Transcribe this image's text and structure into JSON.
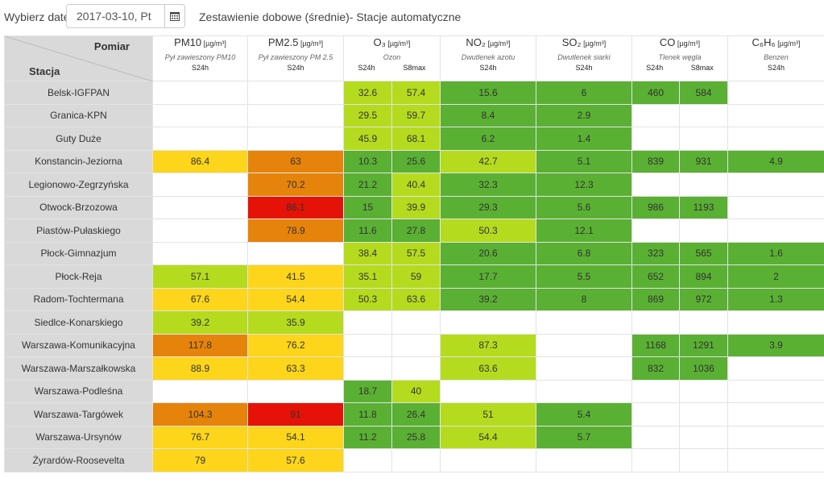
{
  "date_picker": {
    "label": "Wybierz datę:",
    "value": "2017-03-10, Pt",
    "icon": "calendar-icon"
  },
  "title": "Zestawienie dobowe (średnie)- Stacje automatyczne",
  "header": {
    "pomiar": "Pomiar",
    "stacja": "Stacja"
  },
  "pollutants": [
    {
      "name": "PM10",
      "unit": "[µg/m³]",
      "desc": "Pył zawieszony PM10",
      "subs": [
        "S24h"
      ]
    },
    {
      "name": "PM2.5",
      "unit": "[µg/m³]",
      "desc": "Pył zawieszony PM 2.5",
      "subs": [
        "S24h"
      ]
    },
    {
      "name": "O₃",
      "unit": "[µg/m³]",
      "desc": "Ozon",
      "subs": [
        "S24h",
        "S8max"
      ]
    },
    {
      "name": "NO₂",
      "unit": "[µg/m³]",
      "desc": "Dwutlenek azotu",
      "subs": [
        "S24h"
      ]
    },
    {
      "name": "SO₂",
      "unit": "[µg/m³]",
      "desc": "Dwutlenek siarki",
      "subs": [
        "S24h"
      ]
    },
    {
      "name": "CO",
      "unit": "[µg/m³]",
      "desc": "Tlenek węgla",
      "subs": [
        "S24h",
        "S8max"
      ]
    },
    {
      "name": "C₆H₆",
      "unit": "[µg/m³]",
      "desc": "Benzen",
      "subs": [
        "S24h"
      ]
    }
  ],
  "colors": {
    "g": "#5ab033",
    "lg": "#b5db1f",
    "y": "#fdd51a",
    "o": "#e6830a",
    "r": "#e41207"
  },
  "rows": [
    {
      "station": "Belsk-IGFPAN",
      "cells": [
        [
          "",
          ""
        ],
        [
          "",
          ""
        ],
        [
          "32.6",
          "lg"
        ],
        [
          "57.4",
          "lg"
        ],
        [
          "15.6",
          "g"
        ],
        [
          "6",
          "g"
        ],
        [
          "460",
          "g"
        ],
        [
          "584",
          "g"
        ],
        [
          "",
          ""
        ]
      ]
    },
    {
      "station": "Granica-KPN",
      "cells": [
        [
          "",
          ""
        ],
        [
          "",
          ""
        ],
        [
          "29.5",
          "lg"
        ],
        [
          "59.7",
          "lg"
        ],
        [
          "8.4",
          "g"
        ],
        [
          "2.9",
          "g"
        ],
        [
          "",
          ""
        ],
        [
          "",
          ""
        ],
        [
          "",
          ""
        ]
      ]
    },
    {
      "station": "Guty Duże",
      "cells": [
        [
          "",
          ""
        ],
        [
          "",
          ""
        ],
        [
          "45.9",
          "lg"
        ],
        [
          "68.1",
          "lg"
        ],
        [
          "6.2",
          "g"
        ],
        [
          "1.4",
          "g"
        ],
        [
          "",
          ""
        ],
        [
          "",
          ""
        ],
        [
          "",
          ""
        ]
      ]
    },
    {
      "station": "Konstancin-Jeziorna",
      "cells": [
        [
          "86.4",
          "y"
        ],
        [
          "63",
          "o"
        ],
        [
          "10.3",
          "g"
        ],
        [
          "25.6",
          "g"
        ],
        [
          "42.7",
          "lg"
        ],
        [
          "5.1",
          "g"
        ],
        [
          "839",
          "g"
        ],
        [
          "931",
          "g"
        ],
        [
          "4.9",
          "g"
        ]
      ]
    },
    {
      "station": "Legionowo-Zegrzyńska",
      "cells": [
        [
          "",
          ""
        ],
        [
          "70.2",
          "o"
        ],
        [
          "21.2",
          "g"
        ],
        [
          "40.4",
          "lg"
        ],
        [
          "32.3",
          "g"
        ],
        [
          "12.3",
          "g"
        ],
        [
          "",
          ""
        ],
        [
          "",
          ""
        ],
        [
          "",
          ""
        ]
      ]
    },
    {
      "station": "Otwock-Brzozowa",
      "cells": [
        [
          "",
          ""
        ],
        [
          "86.1",
          "r"
        ],
        [
          "15",
          "g"
        ],
        [
          "39.9",
          "lg"
        ],
        [
          "29.3",
          "g"
        ],
        [
          "5.6",
          "g"
        ],
        [
          "986",
          "g"
        ],
        [
          "1193",
          "g"
        ],
        [
          "",
          ""
        ]
      ]
    },
    {
      "station": "Piastów-Pułaskiego",
      "cells": [
        [
          "",
          ""
        ],
        [
          "78.9",
          "o"
        ],
        [
          "11.6",
          "g"
        ],
        [
          "27.8",
          "g"
        ],
        [
          "50.3",
          "lg"
        ],
        [
          "12.1",
          "g"
        ],
        [
          "",
          ""
        ],
        [
          "",
          ""
        ],
        [
          "",
          ""
        ]
      ]
    },
    {
      "station": "Płock-Gimnazjum",
      "cells": [
        [
          "",
          ""
        ],
        [
          "",
          ""
        ],
        [
          "38.4",
          "lg"
        ],
        [
          "57.5",
          "lg"
        ],
        [
          "20.6",
          "g"
        ],
        [
          "6.8",
          "g"
        ],
        [
          "323",
          "g"
        ],
        [
          "565",
          "g"
        ],
        [
          "1.6",
          "g"
        ]
      ]
    },
    {
      "station": "Płock-Reja",
      "cells": [
        [
          "57.1",
          "lg"
        ],
        [
          "41.5",
          "y"
        ],
        [
          "35.1",
          "lg"
        ],
        [
          "59",
          "lg"
        ],
        [
          "17.7",
          "g"
        ],
        [
          "5.5",
          "g"
        ],
        [
          "652",
          "g"
        ],
        [
          "894",
          "g"
        ],
        [
          "2",
          "g"
        ]
      ]
    },
    {
      "station": "Radom-Tochtermana",
      "cells": [
        [
          "67.6",
          "y"
        ],
        [
          "54.4",
          "y"
        ],
        [
          "50.3",
          "lg"
        ],
        [
          "63.6",
          "lg"
        ],
        [
          "39.2",
          "g"
        ],
        [
          "8",
          "g"
        ],
        [
          "869",
          "g"
        ],
        [
          "972",
          "g"
        ],
        [
          "1.3",
          "g"
        ]
      ]
    },
    {
      "station": "Siedlce-Konarskiego",
      "cells": [
        [
          "39.2",
          "lg"
        ],
        [
          "35.9",
          "lg"
        ],
        [
          "",
          ""
        ],
        [
          "",
          ""
        ],
        [
          "",
          ""
        ],
        [
          "",
          ""
        ],
        [
          "",
          ""
        ],
        [
          "",
          ""
        ],
        [
          "",
          ""
        ]
      ]
    },
    {
      "station": "Warszawa-Komunikacyjna",
      "cells": [
        [
          "117.8",
          "o"
        ],
        [
          "76.2",
          "y"
        ],
        [
          "",
          ""
        ],
        [
          "",
          ""
        ],
        [
          "87.3",
          "lg"
        ],
        [
          "",
          ""
        ],
        [
          "1168",
          "g"
        ],
        [
          "1291",
          "g"
        ],
        [
          "3.9",
          "g"
        ]
      ]
    },
    {
      "station": "Warszawa-Marszałkowska",
      "cells": [
        [
          "88.9",
          "y"
        ],
        [
          "63.3",
          "y"
        ],
        [
          "",
          ""
        ],
        [
          "",
          ""
        ],
        [
          "63.6",
          "lg"
        ],
        [
          "",
          ""
        ],
        [
          "832",
          "g"
        ],
        [
          "1036",
          "g"
        ],
        [
          "",
          ""
        ]
      ]
    },
    {
      "station": "Warszawa-Podleśna",
      "cells": [
        [
          "",
          ""
        ],
        [
          "",
          ""
        ],
        [
          "18.7",
          "g"
        ],
        [
          "40",
          "lg"
        ],
        [
          "",
          ""
        ],
        [
          "",
          ""
        ],
        [
          "",
          ""
        ],
        [
          "",
          ""
        ],
        [
          "",
          ""
        ]
      ]
    },
    {
      "station": "Warszawa-Targówek",
      "cells": [
        [
          "104.3",
          "o"
        ],
        [
          "91",
          "r"
        ],
        [
          "11.8",
          "g"
        ],
        [
          "26.4",
          "g"
        ],
        [
          "51",
          "lg"
        ],
        [
          "5.4",
          "g"
        ],
        [
          "",
          ""
        ],
        [
          "",
          ""
        ],
        [
          "",
          ""
        ]
      ]
    },
    {
      "station": "Warszawa-Ursynów",
      "cells": [
        [
          "76.7",
          "y"
        ],
        [
          "54.1",
          "y"
        ],
        [
          "11.2",
          "g"
        ],
        [
          "25.8",
          "g"
        ],
        [
          "54.4",
          "lg"
        ],
        [
          "5.7",
          "g"
        ],
        [
          "",
          ""
        ],
        [
          "",
          ""
        ],
        [
          "",
          ""
        ]
      ]
    },
    {
      "station": "Żyrardów-Roosevelta",
      "cells": [
        [
          "79",
          "y"
        ],
        [
          "57.6",
          "y"
        ],
        [
          "",
          ""
        ],
        [
          "",
          ""
        ],
        [
          "",
          ""
        ],
        [
          "",
          ""
        ],
        [
          "",
          ""
        ],
        [
          "",
          ""
        ],
        [
          "",
          ""
        ]
      ]
    }
  ]
}
